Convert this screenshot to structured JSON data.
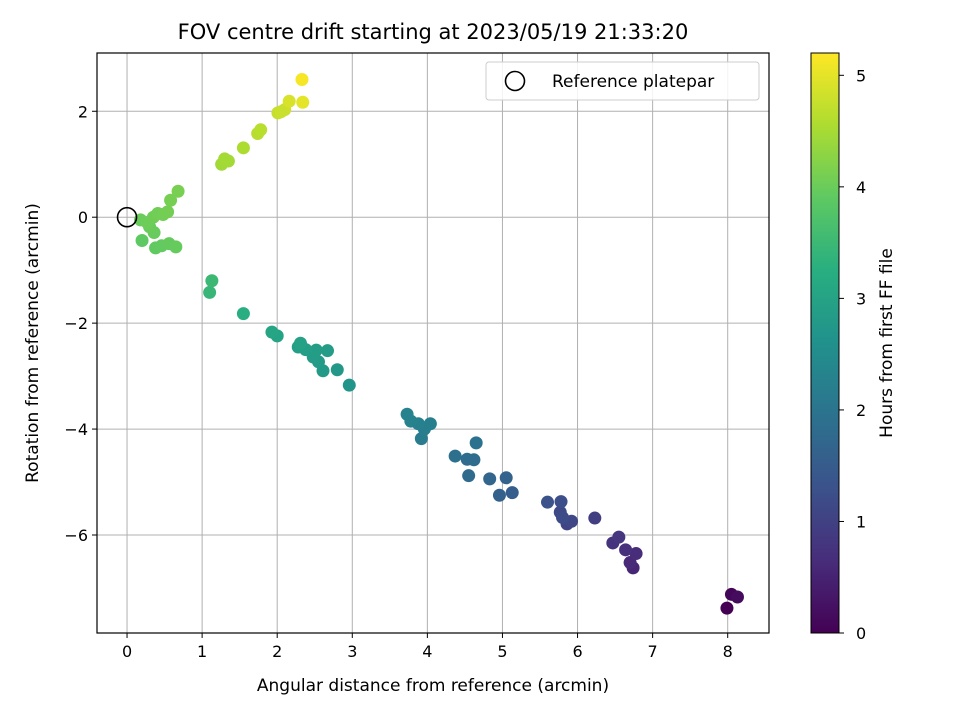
{
  "chart_data": {
    "type": "scatter",
    "title": "FOV centre drift starting at 2023/05/19 21:33:20",
    "xlabel": "Angular distance from reference (arcmin)",
    "ylabel": "Rotation from reference (arcmin)",
    "xlim": [
      -0.4,
      8.55
    ],
    "ylim": [
      -7.85,
      3.1
    ],
    "xticks": [
      0,
      1,
      2,
      3,
      4,
      5,
      6,
      7,
      8
    ],
    "yticks": [
      -6,
      -4,
      -2,
      0,
      2
    ],
    "grid": true,
    "legend": {
      "position": "top-right",
      "entries": [
        "Reference platepar"
      ]
    },
    "reference_point": {
      "x": 0,
      "y": 0,
      "marker": "open-circle"
    },
    "colorbar": {
      "label": "Hours from first FF file",
      "colormap": "viridis",
      "range": [
        0,
        5.2
      ],
      "ticks": [
        0,
        1,
        2,
        3,
        4,
        5
      ]
    },
    "points": [
      [
        7.99,
        -7.38,
        0.0
      ],
      [
        8.05,
        -7.12,
        0.08
      ],
      [
        8.13,
        -7.17,
        0.15
      ],
      [
        6.74,
        -6.62,
        0.55
      ],
      [
        6.7,
        -6.52,
        0.6
      ],
      [
        6.78,
        -6.35,
        0.65
      ],
      [
        6.64,
        -6.28,
        0.7
      ],
      [
        6.47,
        -6.15,
        0.75
      ],
      [
        6.55,
        -6.04,
        0.8
      ],
      [
        6.23,
        -5.68,
        0.95
      ],
      [
        5.86,
        -5.79,
        1.05
      ],
      [
        5.92,
        -5.74,
        1.1
      ],
      [
        5.77,
        -5.57,
        1.15
      ],
      [
        5.8,
        -5.67,
        1.18
      ],
      [
        5.78,
        -5.37,
        1.25
      ],
      [
        5.6,
        -5.38,
        1.3
      ],
      [
        5.13,
        -5.2,
        1.55
      ],
      [
        4.96,
        -5.25,
        1.6
      ],
      [
        5.05,
        -4.92,
        1.65
      ],
      [
        4.83,
        -4.94,
        1.7
      ],
      [
        4.55,
        -4.88,
        1.78
      ],
      [
        4.53,
        -4.57,
        1.82
      ],
      [
        4.62,
        -4.58,
        1.85
      ],
      [
        4.37,
        -4.51,
        1.9
      ],
      [
        4.65,
        -4.26,
        1.95
      ],
      [
        3.92,
        -4.18,
        2.15
      ],
      [
        3.96,
        -4.0,
        2.2
      ],
      [
        4.04,
        -3.9,
        2.22
      ],
      [
        3.88,
        -3.9,
        2.25
      ],
      [
        3.78,
        -3.85,
        2.28
      ],
      [
        3.73,
        -3.72,
        2.3
      ],
      [
        2.96,
        -3.17,
        2.7
      ],
      [
        2.8,
        -2.88,
        2.75
      ],
      [
        2.61,
        -2.9,
        2.8
      ],
      [
        2.55,
        -2.73,
        2.82
      ],
      [
        2.48,
        -2.64,
        2.85
      ],
      [
        2.67,
        -2.52,
        2.85
      ],
      [
        2.52,
        -2.51,
        2.88
      ],
      [
        2.38,
        -2.5,
        2.9
      ],
      [
        2.28,
        -2.45,
        2.92
      ],
      [
        2.31,
        -2.38,
        2.95
      ],
      [
        2.0,
        -2.24,
        3.0
      ],
      [
        1.93,
        -2.17,
        3.05
      ],
      [
        1.55,
        -1.82,
        3.25
      ],
      [
        1.1,
        -1.42,
        3.45
      ],
      [
        1.13,
        -1.2,
        3.5
      ],
      [
        0.2,
        -0.44,
        3.9
      ],
      [
        0.38,
        -0.58,
        3.92
      ],
      [
        0.46,
        -0.54,
        3.93
      ],
      [
        0.56,
        -0.5,
        3.95
      ],
      [
        0.65,
        -0.56,
        3.96
      ],
      [
        0.36,
        -0.29,
        3.97
      ],
      [
        0.3,
        -0.18,
        3.98
      ],
      [
        0.18,
        -0.05,
        4.0
      ],
      [
        0.27,
        -0.1,
        4.02
      ],
      [
        0.35,
        0.0,
        4.04
      ],
      [
        0.41,
        0.07,
        4.05
      ],
      [
        0.48,
        0.05,
        4.07
      ],
      [
        0.54,
        0.1,
        4.08
      ],
      [
        0.58,
        0.32,
        4.1
      ],
      [
        0.68,
        0.49,
        4.12
      ],
      [
        1.26,
        1.0,
        4.45
      ],
      [
        1.3,
        1.1,
        4.47
      ],
      [
        1.35,
        1.06,
        4.48
      ],
      [
        1.55,
        1.31,
        4.55
      ],
      [
        1.74,
        1.58,
        4.62
      ],
      [
        1.78,
        1.65,
        4.64
      ],
      [
        2.01,
        1.97,
        4.75
      ],
      [
        2.1,
        2.03,
        4.8
      ],
      [
        2.05,
        1.99,
        4.78
      ],
      [
        2.16,
        2.19,
        4.9
      ],
      [
        2.34,
        2.17,
        5.0
      ],
      [
        2.33,
        2.6,
        5.15
      ]
    ]
  }
}
